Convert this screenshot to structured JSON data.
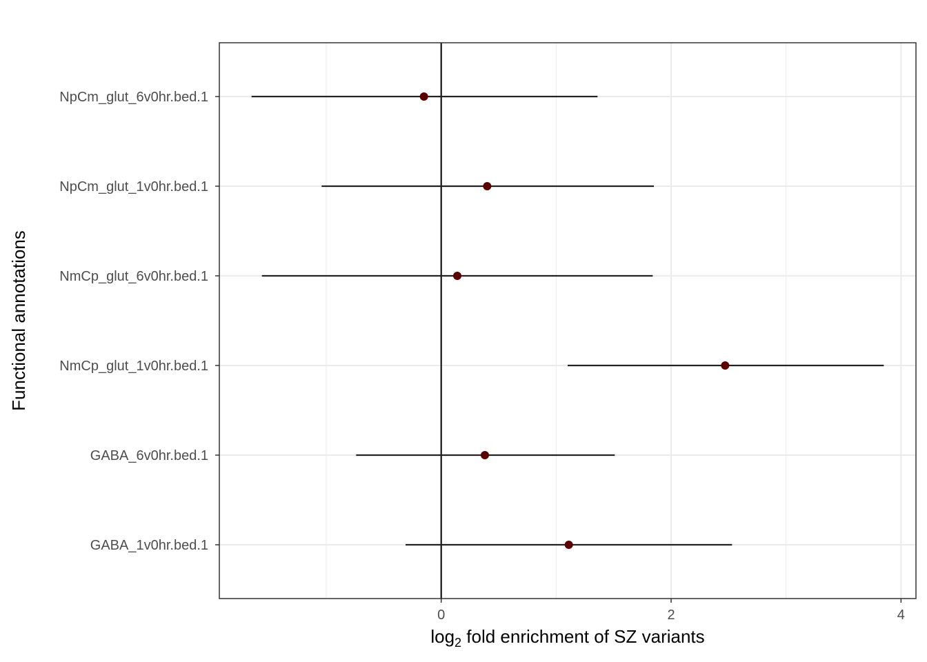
{
  "chart_data": {
    "type": "forest",
    "xlabel_prefix": "log",
    "xlabel_subscript": "2",
    "xlabel_suffix": " fold enrichment of SZ variants",
    "ylabel": "Functional annotations",
    "xlim": [
      -1.93,
      4.13
    ],
    "x_ticks": [
      0,
      2,
      4
    ],
    "x_tick_labels": [
      "0",
      "2",
      "4"
    ],
    "reference_line_x": 0,
    "grid": true,
    "point_color": "#5a0000",
    "categories": [
      "NpCm_glut_6v0hr.bed.1",
      "NpCm_glut_1v0hr.bed.1",
      "NmCp_glut_6v0hr.bed.1",
      "NmCp_glut_1v0hr.bed.1",
      "GABA_6v0hr.bed.1",
      "GABA_1v0hr.bed.1"
    ],
    "estimates": [
      -0.15,
      0.4,
      0.14,
      2.47,
      0.38,
      1.11
    ],
    "ci_low": [
      -1.65,
      -1.04,
      -1.56,
      1.1,
      -0.74,
      -0.31
    ],
    "ci_high": [
      1.36,
      1.85,
      1.84,
      3.85,
      1.51,
      2.53
    ]
  }
}
